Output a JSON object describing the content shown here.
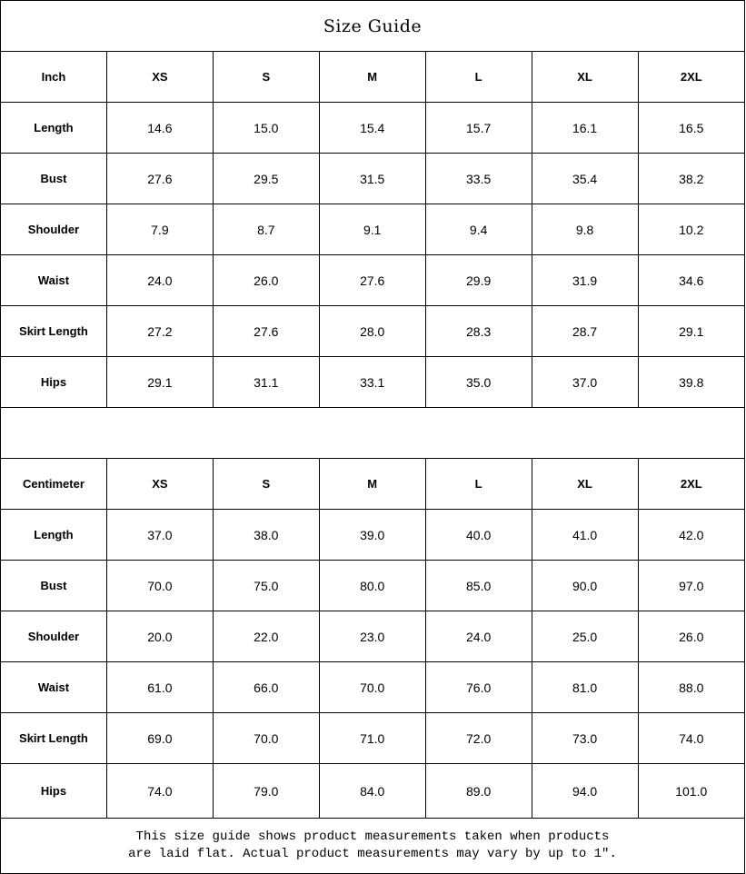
{
  "title": "Size Guide",
  "sizes": [
    "XS",
    "S",
    "M",
    "L",
    "XL",
    "2XL"
  ],
  "inch": {
    "unit_label": "Inch",
    "rows": [
      {
        "label": "Length",
        "values": [
          "14.6",
          "15.0",
          "15.4",
          "15.7",
          "16.1",
          "16.5"
        ]
      },
      {
        "label": "Bust",
        "values": [
          "27.6",
          "29.5",
          "31.5",
          "33.5",
          "35.4",
          "38.2"
        ]
      },
      {
        "label": "Shoulder",
        "values": [
          "7.9",
          "8.7",
          "9.1",
          "9.4",
          "9.8",
          "10.2"
        ]
      },
      {
        "label": "Waist",
        "values": [
          "24.0",
          "26.0",
          "27.6",
          "29.9",
          "31.9",
          "34.6"
        ]
      },
      {
        "label": "Skirt Length",
        "values": [
          "27.2",
          "27.6",
          "28.0",
          "28.3",
          "28.7",
          "29.1"
        ]
      },
      {
        "label": "Hips",
        "values": [
          "29.1",
          "31.1",
          "33.1",
          "35.0",
          "37.0",
          "39.8"
        ]
      }
    ]
  },
  "cm": {
    "unit_label": "Centimeter",
    "rows": [
      {
        "label": "Length",
        "values": [
          "37.0",
          "38.0",
          "39.0",
          "40.0",
          "41.0",
          "42.0"
        ]
      },
      {
        "label": "Bust",
        "values": [
          "70.0",
          "75.0",
          "80.0",
          "85.0",
          "90.0",
          "97.0"
        ]
      },
      {
        "label": "Shoulder",
        "values": [
          "20.0",
          "22.0",
          "23.0",
          "24.0",
          "25.0",
          "26.0"
        ]
      },
      {
        "label": "Waist",
        "values": [
          "61.0",
          "66.0",
          "70.0",
          "76.0",
          "81.0",
          "88.0"
        ]
      },
      {
        "label": "Skirt Length",
        "values": [
          "69.0",
          "70.0",
          "71.0",
          "72.0",
          "73.0",
          "74.0"
        ]
      },
      {
        "label": "Hips",
        "values": [
          "74.0",
          "79.0",
          "84.0",
          "89.0",
          "94.0",
          "101.0"
        ]
      }
    ]
  },
  "footer": {
    "line1": "This size guide shows product measurements taken when products",
    "line2": "are laid flat. Actual product measurements may vary by up to 1″."
  }
}
